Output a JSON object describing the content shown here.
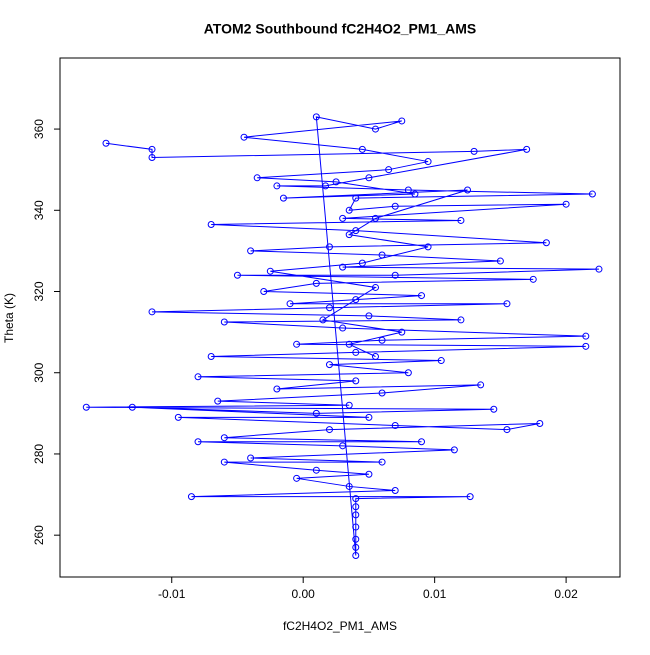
{
  "chart_data": {
    "type": "scatter",
    "title": "ATOM2 Southbound fC2H4O2_PM1_AMS",
    "x_label": "fC2H4O2_PM1_AMS",
    "y_label": "Theta (K)",
    "color": "#0000ff",
    "connect": true,
    "xlim": [
      -0.0185,
      0.0241
    ],
    "ylim": [
      249.7,
      377.5
    ],
    "xticks": [
      {
        "value": -0.01,
        "label": "-0.01"
      },
      {
        "value": 0,
        "label": "0.00"
      },
      {
        "value": 0.01,
        "label": "0.01"
      },
      {
        "value": 0.02,
        "label": "0.02"
      }
    ],
    "yticks": [
      260,
      280,
      300,
      320,
      340,
      360
    ],
    "x": [
      -0.015,
      -0.0115,
      -0.0115,
      0.013,
      0.017,
      0.005,
      0.0017,
      -0.002,
      0.008,
      0.022,
      0.004,
      0.0035,
      0.007,
      0.02,
      0.003,
      0.012,
      -0.007,
      0.004,
      0.0185,
      0.002,
      -0.004,
      0.006,
      0.015,
      0.003,
      0.0225,
      0.007,
      -0.005,
      0.0175,
      0.001,
      -0.003,
      0.009,
      0.004,
      -0.001,
      0.0155,
      0.002,
      -0.0115,
      0.005,
      0.012,
      -0.006,
      0.003,
      0.0215,
      0.006,
      -0.0005,
      0.0215,
      0.004,
      -0.007,
      0.0105,
      0.002,
      0.008,
      -0.008,
      0.004,
      -0.002,
      0.0135,
      0.006,
      -0.0065,
      0.0035,
      -0.0165,
      0.0145,
      0.001,
      -0.013,
      0.005,
      -0.0095,
      0.007,
      0.0155,
      0.018,
      0.002,
      -0.006,
      0.009,
      -0.008,
      0.003,
      0.0115,
      -0.004,
      0.006,
      -0.006,
      0.001,
      0.005,
      -0.0005,
      0.0035,
      0.007,
      -0.0085,
      0.0127,
      0.004,
      0.004,
      0.004,
      0.004,
      0.004,
      0.004,
      0.004,
      0.001,
      0.0055,
      0.0075,
      -0.0045,
      0.0045,
      0.0095,
      0.0065,
      -0.0035,
      0.0025,
      0.0085,
      -0.0015,
      0.0125,
      0.0055,
      0.0035,
      0.0095,
      0.0045,
      -0.0025,
      0.0055,
      0.0015,
      0.0075,
      0.0035,
      0.0055
    ],
    "values": [
      356.5,
      355,
      353,
      354.5,
      355,
      348,
      346,
      346,
      345,
      344,
      343,
      340,
      341,
      341.5,
      338,
      337.5,
      336.5,
      335,
      332,
      331,
      330,
      329,
      327.5,
      326,
      325.5,
      324,
      324,
      323,
      322,
      320,
      319,
      318,
      317,
      317,
      316,
      315,
      314,
      313,
      312.5,
      311,
      309,
      308,
      307,
      306.5,
      305,
      304,
      303,
      302,
      300,
      299,
      298,
      296,
      297,
      295,
      293,
      292,
      291.5,
      291,
      290,
      291.5,
      289,
      289,
      287,
      286,
      287.5,
      286,
      284,
      283,
      283,
      282,
      281,
      279,
      278,
      278,
      276,
      275,
      274,
      272,
      271,
      269.5,
      269.5,
      269,
      267,
      265,
      262,
      259,
      257,
      255,
      363,
      360,
      362,
      358,
      355,
      352,
      350,
      348,
      347,
      344,
      343,
      345,
      338,
      334,
      331,
      327,
      325,
      321,
      313,
      310,
      307,
      304
    ]
  }
}
